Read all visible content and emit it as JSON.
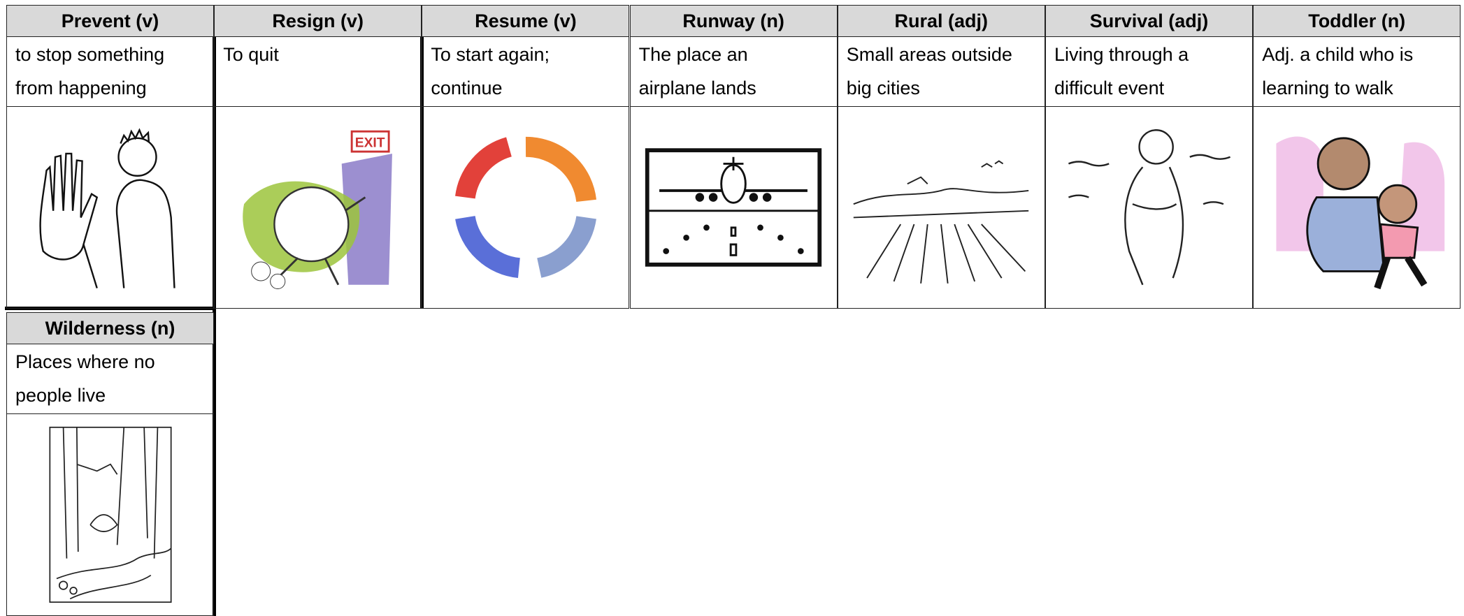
{
  "cards": [
    {
      "word": "Prevent (v)",
      "definition": "to stop something from happening"
    },
    {
      "word": "Resign (v)",
      "definition": "To quit",
      "image_text": "EXIT"
    },
    {
      "word": "Resume (v)",
      "definition": "To start again; continue"
    },
    {
      "word": "Runway (n)",
      "definition": "The place an airplane lands"
    },
    {
      "word": "Rural (adj)",
      "definition": "Small areas outside big cities"
    },
    {
      "word": "Survival (adj)",
      "definition": "Living through a difficult event"
    },
    {
      "word": "Toddler (n)",
      "definition": "Adj. a child who is learning to walk"
    },
    {
      "word": "Wilderness (n)",
      "definition": "Places where no people live"
    }
  ]
}
